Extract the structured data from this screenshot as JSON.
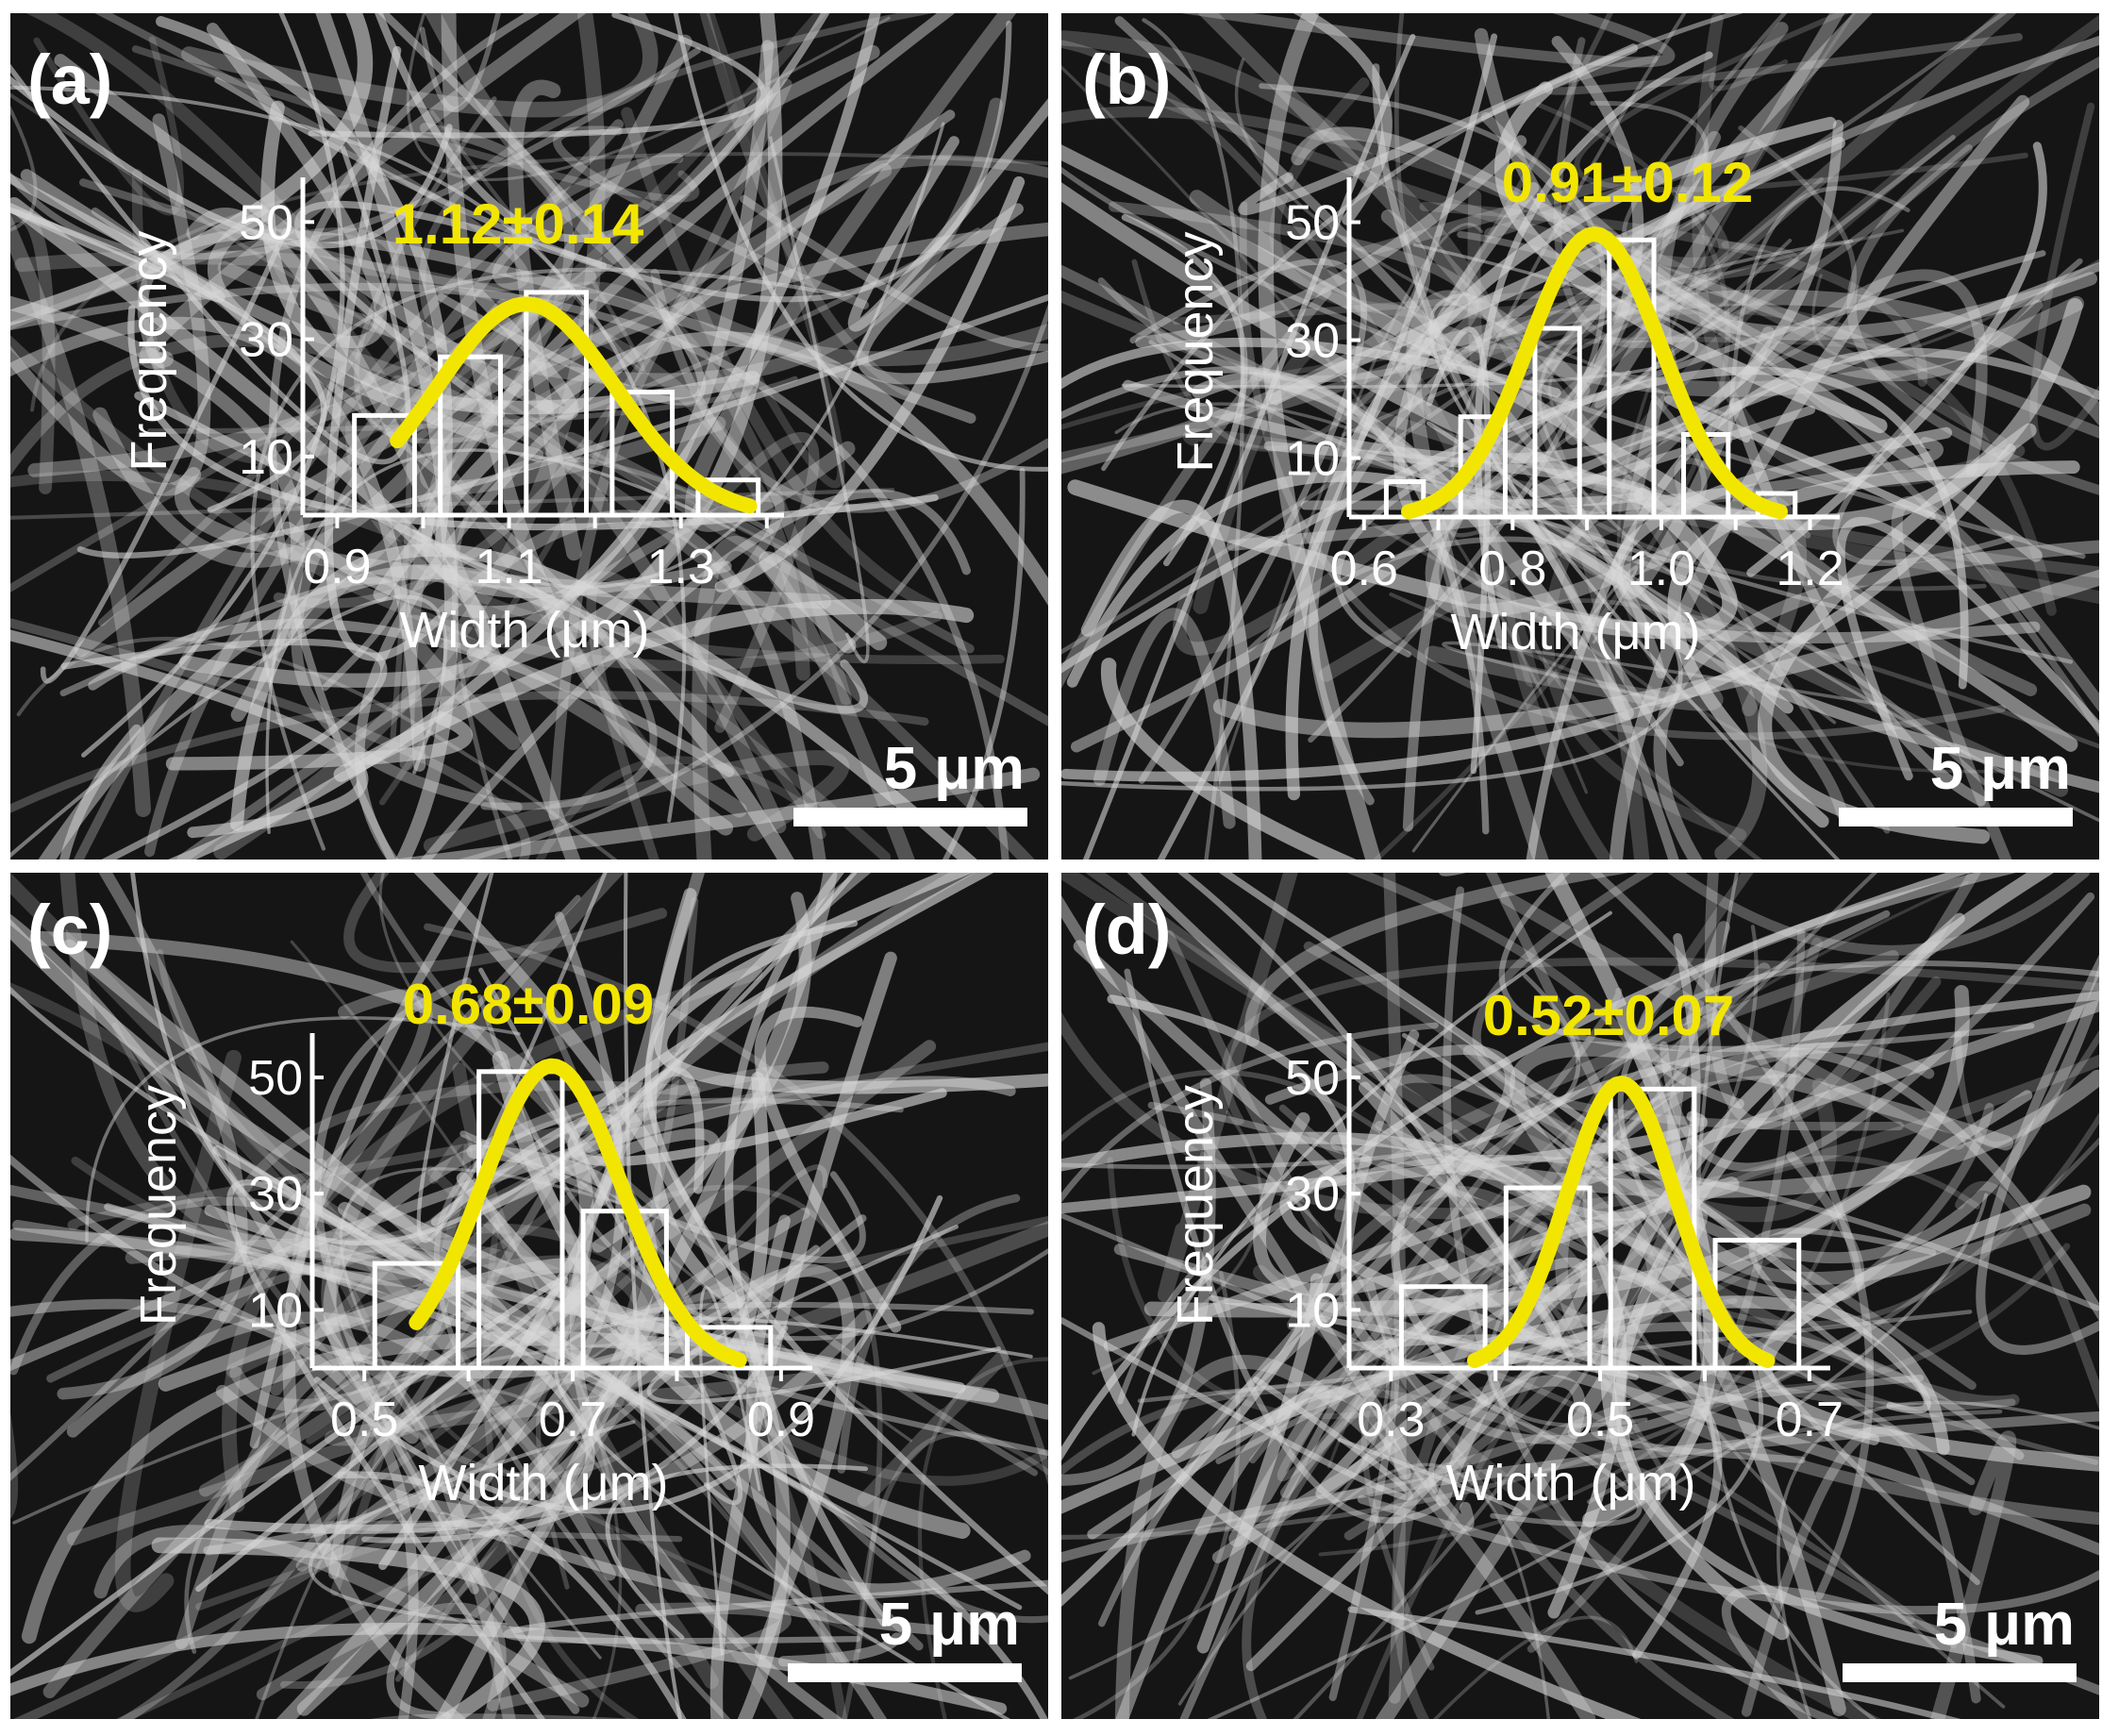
{
  "figure": {
    "panels": [
      {
        "id": "a",
        "label": "(a)",
        "fit_annotation": "1.12±0.14",
        "scale_bar_text": "5 μm"
      },
      {
        "id": "b",
        "label": "(b)",
        "fit_annotation": "0.91±0.12",
        "scale_bar_text": "5 μm"
      },
      {
        "id": "c",
        "label": "(c)",
        "fit_annotation": "0.68±0.09",
        "scale_bar_text": "5 μm"
      },
      {
        "id": "d",
        "label": "(d)",
        "fit_annotation": "0.52±0.07",
        "scale_bar_text": "5 μm"
      }
    ]
  },
  "colors": {
    "background_image": "#151515",
    "fibers": "#d8d8d8",
    "histogram_outline": "#ffffff",
    "fit_curve": "#f2e600",
    "annotation_text": "#f2e600",
    "axis_text": "#ffffff"
  },
  "chart_data": [
    {
      "type": "bar",
      "panel": "a",
      "xlabel": "Width (μm)",
      "ylabel": "Frequency",
      "xlim": [
        0.86,
        1.42
      ],
      "ylim": [
        0,
        56
      ],
      "xticks": [
        "0.9",
        "1.1",
        "1.3"
      ],
      "yticks": [
        "10",
        "30",
        "50"
      ],
      "bins": [
        {
          "x0": 0.92,
          "x1": 0.99,
          "value": 17
        },
        {
          "x0": 1.02,
          "x1": 1.09,
          "value": 27
        },
        {
          "x0": 1.12,
          "x1": 1.19,
          "value": 38
        },
        {
          "x0": 1.22,
          "x1": 1.29,
          "value": 21
        },
        {
          "x0": 1.32,
          "x1": 1.39,
          "value": 6
        }
      ],
      "fit": {
        "type": "gaussian",
        "mean": 1.12,
        "sd": 0.14,
        "peak": 36,
        "x_start": 0.97,
        "x_end": 1.38
      },
      "annotation": "1.12±0.14"
    },
    {
      "type": "bar",
      "panel": "b",
      "xlabel": "Width (μm)",
      "ylabel": "Frequency",
      "xlim": [
        0.58,
        1.24
      ],
      "ylim": [
        0,
        56
      ],
      "xticks": [
        "0.6",
        "0.8",
        "1.0",
        "1.2"
      ],
      "yticks": [
        "10",
        "30",
        "50"
      ],
      "bins": [
        {
          "x0": 0.63,
          "x1": 0.68,
          "value": 6
        },
        {
          "x0": 0.73,
          "x1": 0.79,
          "value": 17
        },
        {
          "x0": 0.83,
          "x1": 0.89,
          "value": 32
        },
        {
          "x0": 0.93,
          "x1": 0.99,
          "value": 47
        },
        {
          "x0": 1.03,
          "x1": 1.09,
          "value": 14
        },
        {
          "x0": 1.13,
          "x1": 1.18,
          "value": 4
        }
      ],
      "fit": {
        "type": "gaussian",
        "mean": 0.91,
        "sd": 0.12,
        "peak": 48,
        "x_start": 0.66,
        "x_end": 1.16
      },
      "annotation": "0.91±0.12"
    },
    {
      "type": "bar",
      "panel": "c",
      "xlabel": "Width (μm)",
      "ylabel": "Frequency",
      "xlim": [
        0.45,
        0.93
      ],
      "ylim": [
        0,
        56
      ],
      "xticks": [
        "0.5",
        "0.7",
        "0.9"
      ],
      "yticks": [
        "10",
        "30",
        "50"
      ],
      "bins": [
        {
          "x0": 0.51,
          "x1": 0.59,
          "value": 18
        },
        {
          "x0": 0.61,
          "x1": 0.69,
          "value": 51
        },
        {
          "x0": 0.71,
          "x1": 0.79,
          "value": 27
        },
        {
          "x0": 0.81,
          "x1": 0.89,
          "value": 7
        }
      ],
      "fit": {
        "type": "gaussian",
        "mean": 0.68,
        "sd": 0.09,
        "peak": 52,
        "x_start": 0.55,
        "x_end": 0.86
      },
      "annotation": "0.68±0.09"
    },
    {
      "type": "bar",
      "panel": "d",
      "xlabel": "Width (μm)",
      "ylabel": "Frequency",
      "xlim": [
        0.26,
        0.72
      ],
      "ylim": [
        0,
        56
      ],
      "xticks": [
        "0.3",
        "0.5",
        "0.7"
      ],
      "yticks": [
        "10",
        "30",
        "50"
      ],
      "bins": [
        {
          "x0": 0.31,
          "x1": 0.39,
          "value": 14
        },
        {
          "x0": 0.41,
          "x1": 0.49,
          "value": 31
        },
        {
          "x0": 0.51,
          "x1": 0.59,
          "value": 48
        },
        {
          "x0": 0.61,
          "x1": 0.69,
          "value": 22
        }
      ],
      "fit": {
        "type": "gaussian",
        "mean": 0.52,
        "sd": 0.07,
        "peak": 49,
        "x_start": 0.38,
        "x_end": 0.66
      },
      "annotation": "0.52±0.07"
    }
  ]
}
